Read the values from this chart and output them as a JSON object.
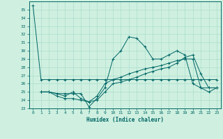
{
  "xlabel": "Humidex (Indice chaleur)",
  "ylabel": "",
  "xlim": [
    -0.5,
    23.5
  ],
  "ylim": [
    23,
    36
  ],
  "yticks": [
    23,
    24,
    25,
    26,
    27,
    28,
    29,
    30,
    31,
    32,
    33,
    34,
    35
  ],
  "xticks": [
    0,
    1,
    2,
    3,
    4,
    5,
    6,
    7,
    8,
    9,
    10,
    11,
    12,
    13,
    14,
    15,
    16,
    17,
    18,
    19,
    20,
    21,
    22,
    23
  ],
  "bg_color": "#cff0e0",
  "line_color": "#006666",
  "grid_color": "#aaddcc",
  "lines": [
    {
      "x": [
        0,
        1,
        2,
        3,
        4,
        5,
        6,
        7,
        8,
        9,
        10,
        11,
        12,
        13,
        14,
        15,
        16,
        17,
        18,
        19,
        20,
        21,
        22,
        23
      ],
      "y": [
        35.5,
        26.5,
        26.5,
        26.5,
        26.5,
        26.5,
        26.5,
        26.5,
        26.5,
        26.5,
        26.5,
        26.5,
        26.5,
        26.5,
        26.5,
        26.5,
        26.5,
        26.5,
        26.5,
        26.5,
        26.5,
        26.5,
        26.5,
        26.5
      ]
    },
    {
      "x": [
        1,
        2,
        3,
        4,
        5,
        6,
        7,
        8,
        9,
        10,
        11,
        12,
        13,
        14,
        15,
        16,
        17,
        18,
        19,
        20,
        21,
        22,
        23
      ],
      "y": [
        25.0,
        25.0,
        24.8,
        24.8,
        24.8,
        24.8,
        23.2,
        24.2,
        25.5,
        29.0,
        30.0,
        31.7,
        31.5,
        30.5,
        29.0,
        29.0,
        29.5,
        30.0,
        29.5,
        26.0,
        25.5,
        25.0,
        25.5
      ]
    },
    {
      "x": [
        1,
        2,
        3,
        4,
        5,
        6,
        7,
        8,
        9,
        10,
        11,
        12,
        13,
        14,
        15,
        16,
        17,
        18,
        19,
        20,
        21,
        22,
        23
      ],
      "y": [
        25.0,
        25.0,
        24.8,
        24.5,
        25.0,
        24.2,
        23.8,
        24.5,
        26.0,
        26.5,
        26.8,
        27.2,
        27.5,
        27.8,
        28.0,
        28.2,
        28.5,
        28.8,
        29.0,
        29.0,
        25.5,
        25.5,
        25.5
      ]
    },
    {
      "x": [
        1,
        2,
        3,
        4,
        5,
        6,
        7,
        8,
        9,
        10,
        11,
        12,
        13,
        14,
        15,
        16,
        17,
        18,
        19,
        20,
        21,
        22,
        23
      ],
      "y": [
        25.0,
        25.0,
        24.5,
        24.2,
        24.2,
        24.0,
        23.8,
        24.0,
        25.0,
        26.0,
        26.2,
        26.5,
        26.8,
        27.2,
        27.5,
        27.8,
        28.0,
        28.5,
        29.2,
        29.5,
        27.2,
        25.5,
        25.5
      ]
    }
  ]
}
